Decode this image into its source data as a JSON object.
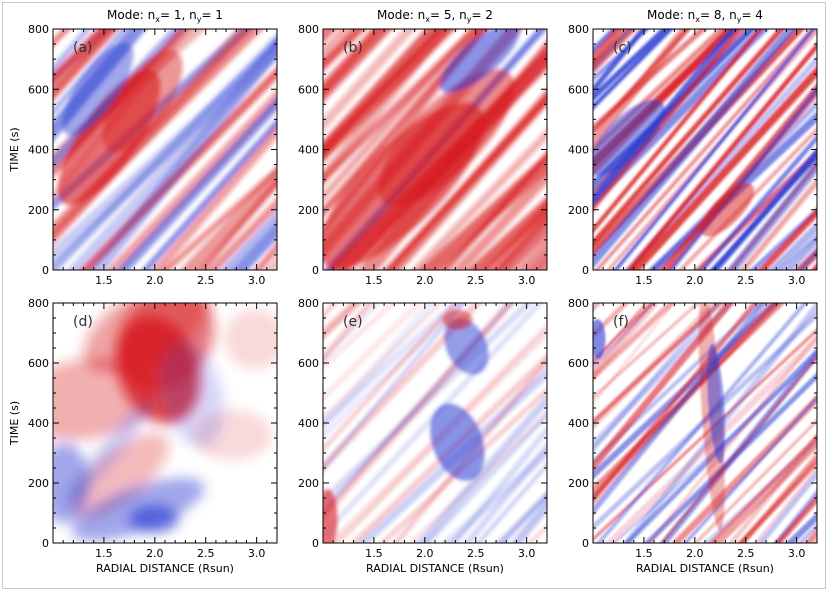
{
  "chart_data": [
    {
      "type": "heatmap",
      "panel": "(a)",
      "title": "Mode: n_x= 1, n_y= 1",
      "title_parts": {
        "prefix": "Mode: n",
        "sub1": "x",
        "mid": "= 1, n",
        "sub2": "y",
        "suffix": "= 1"
      },
      "xlabel": "",
      "ylabel": "TIME (s)",
      "xlim": [
        1.0,
        3.2
      ],
      "ylim": [
        0,
        800
      ],
      "xticks": [
        "1.5",
        "2.0",
        "2.5",
        "3.0"
      ],
      "yticks": [
        "0",
        "200",
        "400",
        "600",
        "800"
      ],
      "colormap": "blue-white-red"
    },
    {
      "type": "heatmap",
      "panel": "(b)",
      "title": "Mode: n_x= 5, n_y= 2",
      "title_parts": {
        "prefix": "Mode: n",
        "sub1": "x",
        "mid": "= 5, n",
        "sub2": "y",
        "suffix": "= 2"
      },
      "xlabel": "",
      "ylabel": "",
      "xlim": [
        1.0,
        3.2
      ],
      "ylim": [
        0,
        800
      ],
      "xticks": [
        "1.5",
        "2.0",
        "2.5",
        "3.0"
      ],
      "yticks": [
        "0",
        "200",
        "400",
        "600",
        "800"
      ],
      "colormap": "blue-white-red"
    },
    {
      "type": "heatmap",
      "panel": "(c)",
      "title": "Mode: n_x= 8, n_y= 4",
      "title_parts": {
        "prefix": "Mode: n",
        "sub1": "x",
        "mid": "= 8, n",
        "sub2": "y",
        "suffix": "= 4"
      },
      "xlabel": "",
      "ylabel": "",
      "xlim": [
        1.0,
        3.2
      ],
      "ylim": [
        0,
        800
      ],
      "xticks": [
        "1.5",
        "2.0",
        "2.5",
        "3.0"
      ],
      "yticks": [
        "0",
        "200",
        "400",
        "600",
        "800"
      ],
      "colormap": "blue-white-red"
    },
    {
      "type": "heatmap",
      "panel": "(d)",
      "title": "",
      "xlabel": "RADIAL DISTANCE (Rsun)",
      "ylabel": "TIME (s)",
      "xlim": [
        1.0,
        3.2
      ],
      "ylim": [
        0,
        800
      ],
      "xticks": [
        "1.5",
        "2.0",
        "2.5",
        "3.0"
      ],
      "yticks": [
        "0",
        "200",
        "400",
        "600",
        "800"
      ],
      "colormap": "blue-white-red"
    },
    {
      "type": "heatmap",
      "panel": "(e)",
      "title": "",
      "xlabel": "RADIAL DISTANCE (Rsun)",
      "ylabel": "",
      "xlim": [
        1.0,
        3.2
      ],
      "ylim": [
        0,
        800
      ],
      "xticks": [
        "1.5",
        "2.0",
        "2.5",
        "3.0"
      ],
      "yticks": [
        "0",
        "200",
        "400",
        "600",
        "800"
      ],
      "colormap": "blue-white-red"
    },
    {
      "type": "heatmap",
      "panel": "(f)",
      "title": "",
      "xlabel": "RADIAL DISTANCE (Rsun)",
      "ylabel": "",
      "xlim": [
        1.0,
        3.2
      ],
      "ylim": [
        0,
        800
      ],
      "xticks": [
        "1.5",
        "2.0",
        "2.5",
        "3.0"
      ],
      "yticks": [
        "0",
        "200",
        "400",
        "600",
        "800"
      ],
      "colormap": "blue-white-red"
    }
  ],
  "colors": {
    "positive": "#d7191c",
    "negative": "#2b3cd1",
    "zero": "#ffffff",
    "frame": "#000000"
  }
}
